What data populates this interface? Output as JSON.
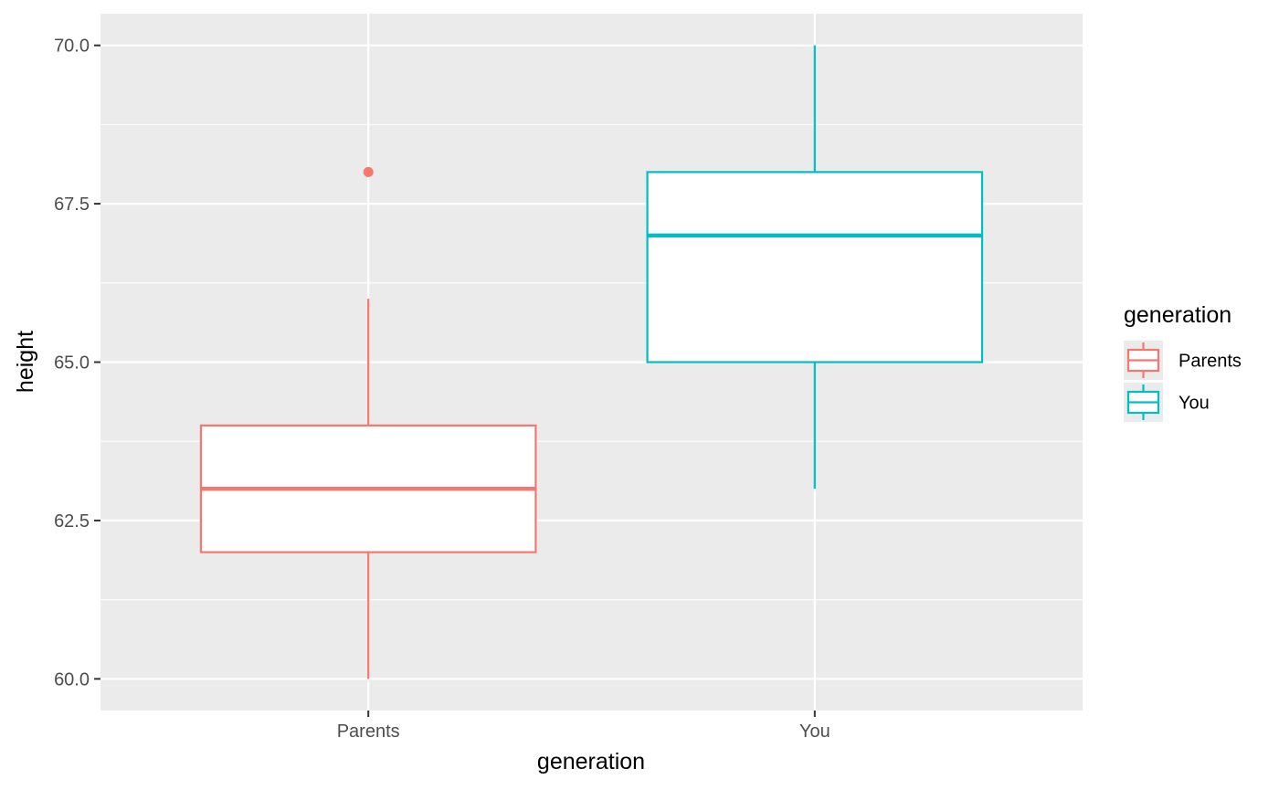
{
  "chart_data": {
    "type": "boxplot",
    "title": "",
    "xlabel": "generation",
    "ylabel": "height",
    "ylim": [
      59.5,
      70.5
    ],
    "yticks": [
      60.0,
      62.5,
      65.0,
      67.5,
      70.0
    ],
    "ytick_labels": [
      "60.0",
      "62.5",
      "65.0",
      "67.5",
      "70.0"
    ],
    "grid": true,
    "categories": [
      "Parents",
      "You"
    ],
    "boxes": [
      {
        "category": "Parents",
        "min": 60,
        "q1": 62,
        "median": 63,
        "q3": 64,
        "max": 66,
        "outliers": [
          68
        ],
        "color": "#F8766D"
      },
      {
        "category": "You",
        "min": 63,
        "q1": 65,
        "median": 67,
        "q3": 68,
        "max": 70,
        "outliers": [],
        "color": "#00BFC4"
      }
    ],
    "legend": {
      "title": "generation",
      "placement": "right",
      "entries": [
        {
          "label": "Parents",
          "color": "#F8766D"
        },
        {
          "label": "You",
          "color": "#00BFC4"
        }
      ]
    },
    "colors": {
      "panel": "#EBEBEB",
      "grid": "#FFFFFF",
      "tick": "#333333",
      "box_fill": "#FFFFFF"
    }
  }
}
